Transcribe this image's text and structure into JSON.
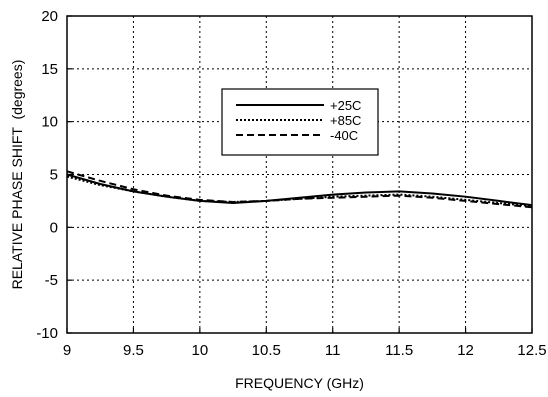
{
  "chart_data": {
    "type": "line",
    "title": "",
    "xlabel": "FREQUENCY (GHz)",
    "ylabel": "RELATIVE PHASE SHIFT  (degrees)",
    "xlim": [
      9,
      12.5
    ],
    "ylim": [
      -10,
      20
    ],
    "grid": true,
    "legend_position": "top-center",
    "x_ticks": [
      9,
      9.5,
      10,
      10.5,
      11,
      11.5,
      12,
      12.5
    ],
    "x_tick_labels": [
      "9",
      "9.5",
      "10",
      "10.5",
      "11",
      "11.5",
      "12",
      "12.5"
    ],
    "y_ticks": [
      -10,
      -5,
      0,
      5,
      10,
      15,
      20
    ],
    "y_tick_labels": [
      "-10",
      "-5",
      "0",
      "5",
      "10",
      "15",
      "20"
    ],
    "series": [
      {
        "name": "+25C",
        "style": "solid",
        "color": "#000000",
        "points": [
          {
            "x": 9.0,
            "y": 5.0
          },
          {
            "x": 9.25,
            "y": 4.1
          },
          {
            "x": 9.5,
            "y": 3.4
          },
          {
            "x": 9.75,
            "y": 2.9
          },
          {
            "x": 10.0,
            "y": 2.5
          },
          {
            "x": 10.25,
            "y": 2.3
          },
          {
            "x": 10.5,
            "y": 2.5
          },
          {
            "x": 10.75,
            "y": 2.8
          },
          {
            "x": 11.0,
            "y": 3.1
          },
          {
            "x": 11.25,
            "y": 3.3
          },
          {
            "x": 11.5,
            "y": 3.4
          },
          {
            "x": 11.75,
            "y": 3.2
          },
          {
            "x": 12.0,
            "y": 2.9
          },
          {
            "x": 12.25,
            "y": 2.5
          },
          {
            "x": 12.5,
            "y": 2.1
          }
        ]
      },
      {
        "name": "+85C",
        "style": "dotted",
        "color": "#000000",
        "points": [
          {
            "x": 9.0,
            "y": 4.8
          },
          {
            "x": 9.25,
            "y": 4.0
          },
          {
            "x": 9.5,
            "y": 3.4
          },
          {
            "x": 9.75,
            "y": 2.9
          },
          {
            "x": 10.0,
            "y": 2.5
          },
          {
            "x": 10.25,
            "y": 2.4
          },
          {
            "x": 10.5,
            "y": 2.5
          },
          {
            "x": 10.75,
            "y": 2.7
          },
          {
            "x": 11.0,
            "y": 2.9
          },
          {
            "x": 11.25,
            "y": 3.0
          },
          {
            "x": 11.5,
            "y": 3.1
          },
          {
            "x": 11.75,
            "y": 2.9
          },
          {
            "x": 12.0,
            "y": 2.6
          },
          {
            "x": 12.25,
            "y": 2.3
          },
          {
            "x": 12.5,
            "y": 2.0
          }
        ]
      },
      {
        "name": "-40C",
        "style": "dashed",
        "color": "#000000",
        "points": [
          {
            "x": 9.0,
            "y": 5.3
          },
          {
            "x": 9.25,
            "y": 4.4
          },
          {
            "x": 9.5,
            "y": 3.6
          },
          {
            "x": 9.75,
            "y": 3.0
          },
          {
            "x": 10.0,
            "y": 2.6
          },
          {
            "x": 10.25,
            "y": 2.4
          },
          {
            "x": 10.5,
            "y": 2.5
          },
          {
            "x": 10.75,
            "y": 2.7
          },
          {
            "x": 11.0,
            "y": 2.8
          },
          {
            "x": 11.25,
            "y": 2.9
          },
          {
            "x": 11.5,
            "y": 3.0
          },
          {
            "x": 11.75,
            "y": 2.8
          },
          {
            "x": 12.0,
            "y": 2.5
          },
          {
            "x": 12.25,
            "y": 2.2
          },
          {
            "x": 12.5,
            "y": 1.9
          }
        ]
      }
    ]
  }
}
